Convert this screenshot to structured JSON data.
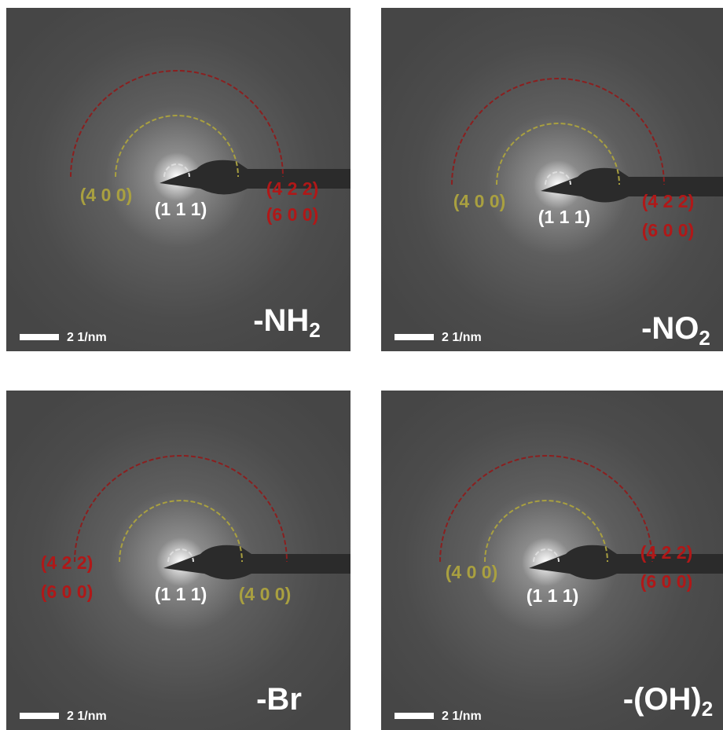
{
  "panels": [
    {
      "group": "-NH",
      "group_subscript": "2",
      "scale_bar": "2 1/nm",
      "labels": [
        "(4 0 0)",
        "(1 1 1)",
        "(4 2 2)",
        "(6 0 0)"
      ]
    },
    {
      "group": "-NO",
      "group_subscript": "2",
      "scale_bar": "2 1/nm",
      "labels": [
        "(4 0 0)",
        "(1 1 1)",
        "(4 2 2)",
        "(6 0 0)"
      ]
    },
    {
      "group": "-Br",
      "scale_bar": "2 1/nm",
      "labels": [
        "(4 0 0)",
        "(1 1 1)",
        "(4 2 2)",
        "(6 0 0)"
      ]
    },
    {
      "group": "-(OH)",
      "group_subscript": "2",
      "scale_bar": "2 1/nm",
      "labels": [
        "(4 0 0)",
        "(1 1 1)",
        "(4 2 2)",
        "(6 0 0)"
      ]
    }
  ]
}
